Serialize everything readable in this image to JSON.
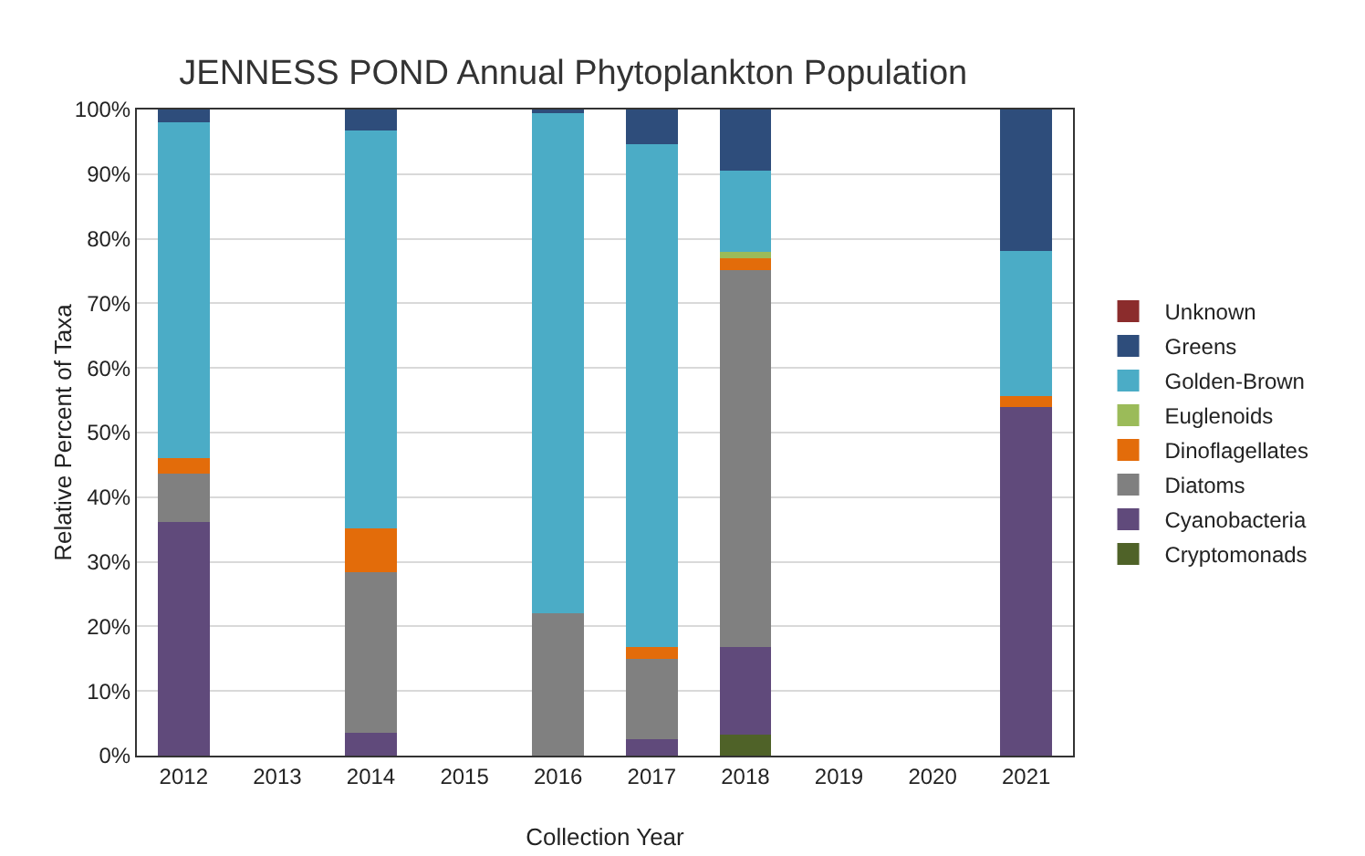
{
  "chart_data": {
    "type": "bar",
    "stacked": true,
    "title": "JENNESS POND Annual Phytoplankton Population",
    "xlabel": "Collection Year",
    "ylabel": "Relative Percent of Taxa",
    "categories": [
      "2012",
      "2013",
      "2014",
      "2015",
      "2016",
      "2017",
      "2018",
      "2019",
      "2020",
      "2021"
    ],
    "series": [
      {
        "name": "Cryptomonads",
        "color": "#4f6228",
        "values": [
          0,
          null,
          0,
          null,
          0,
          0,
          3.2,
          null,
          null,
          0
        ]
      },
      {
        "name": "Cyanobacteria",
        "color": "#604a7b",
        "values": [
          36.1,
          null,
          3.6,
          null,
          0,
          2.5,
          13.6,
          null,
          null,
          54.0
        ]
      },
      {
        "name": "Diatoms",
        "color": "#808080",
        "values": [
          7.6,
          null,
          24.8,
          null,
          22.0,
          12.5,
          58.3,
          null,
          null,
          0
        ]
      },
      {
        "name": "Dinoflagellates",
        "color": "#e36c0a",
        "values": [
          2.4,
          null,
          6.8,
          null,
          0,
          1.8,
          1.9,
          null,
          null,
          1.6
        ]
      },
      {
        "name": "Euglenoids",
        "color": "#9bbb59",
        "values": [
          0,
          null,
          0,
          null,
          0,
          0,
          1.0,
          null,
          null,
          0
        ]
      },
      {
        "name": "Golden-Brown",
        "color": "#4bacc6",
        "values": [
          51.9,
          null,
          61.6,
          null,
          77.5,
          77.9,
          12.5,
          null,
          null,
          22.5
        ]
      },
      {
        "name": "Greens",
        "color": "#2e4d7b",
        "values": [
          2.0,
          null,
          3.2,
          null,
          0.5,
          5.3,
          9.5,
          null,
          null,
          21.9
        ]
      },
      {
        "name": "Unknown",
        "color": "#8b2c2c",
        "values": [
          0,
          null,
          0,
          null,
          0,
          0,
          0,
          null,
          null,
          0
        ]
      }
    ],
    "ylim": [
      0,
      100
    ],
    "yticks": [
      {
        "value": 0,
        "label": "0%"
      },
      {
        "value": 10,
        "label": "10%"
      },
      {
        "value": 20,
        "label": "20%"
      },
      {
        "value": 30,
        "label": "30%"
      },
      {
        "value": 40,
        "label": "40%"
      },
      {
        "value": 50,
        "label": "50%"
      },
      {
        "value": 60,
        "label": "60%"
      },
      {
        "value": 70,
        "label": "70%"
      },
      {
        "value": 80,
        "label": "80%"
      },
      {
        "value": 90,
        "label": "90%"
      },
      {
        "value": 100,
        "label": "100%"
      }
    ],
    "grid": "y",
    "legend": "right"
  }
}
